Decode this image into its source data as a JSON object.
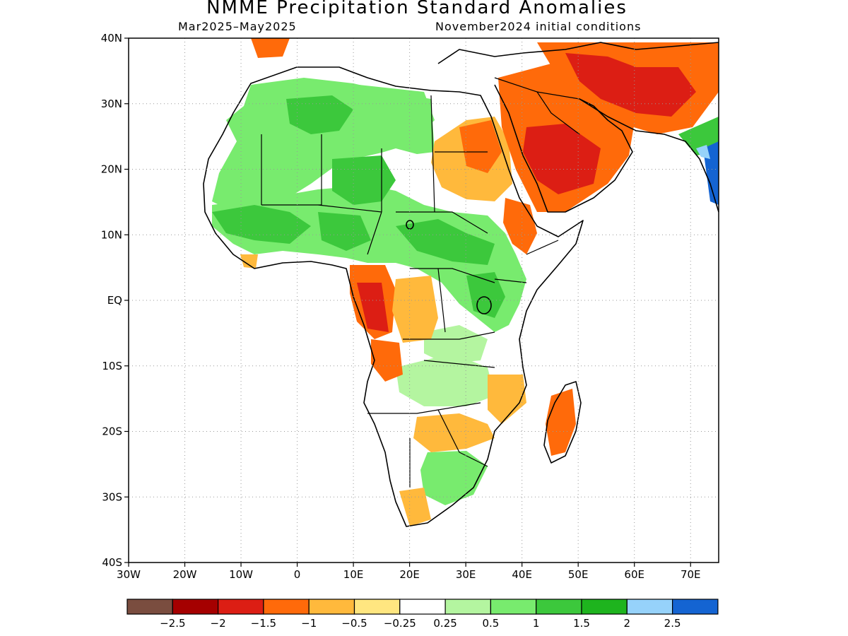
{
  "title": "NMME Precipitation Standard Anomalies",
  "period": "Mar2025–May2025",
  "init": "November2024 initial conditions",
  "map": {
    "lat_labels": [
      {
        "lat": 40,
        "text": "40N"
      },
      {
        "lat": 30,
        "text": "30N"
      },
      {
        "lat": 20,
        "text": "20N"
      },
      {
        "lat": 10,
        "text": "10N"
      },
      {
        "lat": 0,
        "text": "EQ"
      },
      {
        "lat": -10,
        "text": "10S"
      },
      {
        "lat": -20,
        "text": "20S"
      },
      {
        "lat": -30,
        "text": "30S"
      },
      {
        "lat": -40,
        "text": "40S"
      }
    ],
    "lon_labels": [
      {
        "lon": -30,
        "text": "30W"
      },
      {
        "lon": -20,
        "text": "20W"
      },
      {
        "lon": -10,
        "text": "10W"
      },
      {
        "lon": 0,
        "text": "0"
      },
      {
        "lon": 10,
        "text": "10E"
      },
      {
        "lon": 20,
        "text": "20E"
      },
      {
        "lon": 30,
        "text": "30E"
      },
      {
        "lon": 40,
        "text": "40E"
      },
      {
        "lon": 50,
        "text": "50E"
      },
      {
        "lon": 60,
        "text": "60E"
      },
      {
        "lon": 70,
        "text": "70E"
      }
    ],
    "lon_range": [
      -30,
      75
    ],
    "lat_range": [
      -40,
      40
    ],
    "grid": "dotted"
  },
  "legend": {
    "colors": [
      "#7a4d3f",
      "#a50000",
      "#dc1e14",
      "#ff6a0a",
      "#ffb93c",
      "#ffe680",
      "#ffffff",
      "#b4f5a0",
      "#78eb6e",
      "#3cc83c",
      "#1eb41e",
      "#96d2fa",
      "#1464d2"
    ],
    "labels": [
      "−2.5",
      "−2",
      "−1.5",
      "−1",
      "−0.5",
      "−0.25",
      "0.25",
      "0.5",
      "1",
      "1.5",
      "2",
      "2.5"
    ]
  }
}
